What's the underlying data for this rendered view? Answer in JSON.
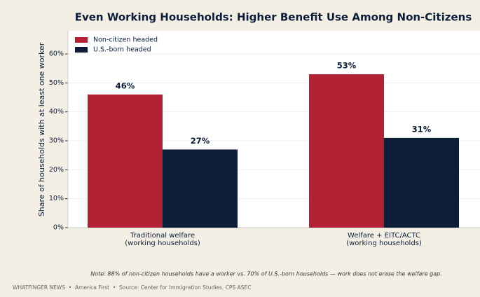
{
  "chart_data": {
    "type": "bar",
    "title": "Even Working Households: Higher Benefit Use Among Non-Citizens",
    "ylabel": "Share of households with at least one worker",
    "categories": [
      "Traditional welfare\n(working households)",
      "Welfare + EITC/ACTC\n(working households)"
    ],
    "series": [
      {
        "name": "Non-citizen headed",
        "color": "#b22234",
        "values": [
          46,
          53
        ],
        "value_labels": [
          "46%",
          "53%"
        ]
      },
      {
        "name": "U.S.-born headed",
        "color": "#0b1d38",
        "values": [
          27,
          31
        ],
        "value_labels": [
          "27%",
          "31%"
        ]
      }
    ],
    "ylim": [
      0,
      68
    ],
    "yticks": [
      {
        "value": 0,
        "label": "0%"
      },
      {
        "value": 10,
        "label": "10%"
      },
      {
        "value": 20,
        "label": "20%"
      },
      {
        "value": 30,
        "label": "30%"
      },
      {
        "value": 40,
        "label": "40%"
      },
      {
        "value": 50,
        "label": "50%"
      },
      {
        "value": 60,
        "label": "60%"
      }
    ],
    "grid": true,
    "legend": "upper-left",
    "note": "Note: 88% of non-citizen households have a worker vs. 70% of U.S.-born households — work does not erase the welfare gap.",
    "footer": "WHATFINGER NEWS  •  America First  •  Source: Center for Immigration Studies, CPS ASEC"
  }
}
